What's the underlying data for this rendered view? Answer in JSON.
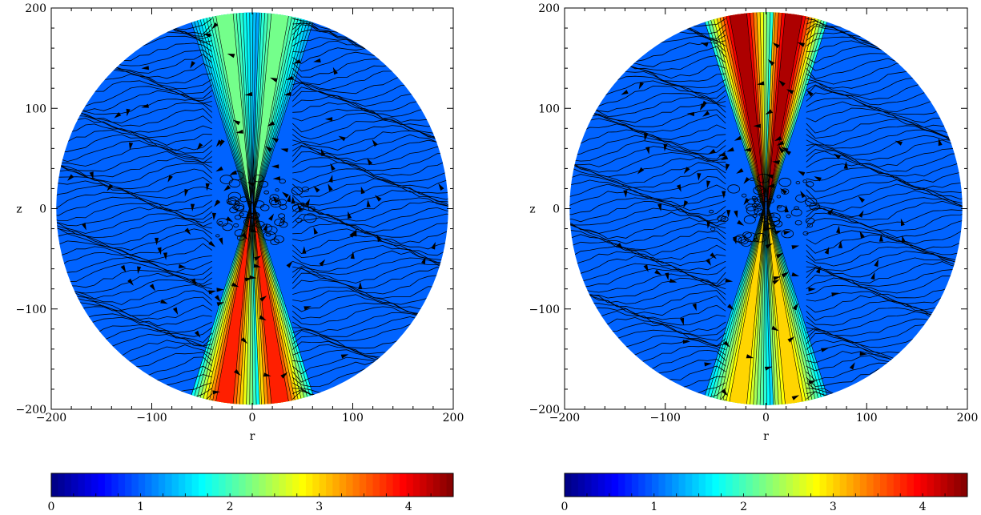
{
  "chart_data": [
    {
      "type": "heatmap",
      "title": "",
      "xlabel": "r",
      "ylabel": "z",
      "xlim": [
        -200,
        200
      ],
      "ylim": [
        -200,
        200
      ],
      "xticks": [
        "−200",
        "−100",
        "0",
        "100",
        "200"
      ],
      "yticks": [
        "200",
        "100",
        "0",
        "−100",
        "−200"
      ],
      "domain_shape": "disk of radius 195",
      "overlay": "streamlines with arrows",
      "colorbar": {
        "range": [
          0,
          4.5
        ],
        "ticks": [
          "0",
          "1",
          "2",
          "3",
          "4"
        ],
        "colormap": "jet"
      },
      "background_value": 1.0,
      "jet_peak_value": 3.8,
      "jet_location": "southern hemisphere, near r = ±30"
    },
    {
      "type": "heatmap",
      "title": "",
      "xlabel": "r",
      "ylabel": "z",
      "xlim": [
        -200,
        200
      ],
      "ylim": [
        -200,
        200
      ],
      "xticks": [
        "−200",
        "−100",
        "0",
        "100",
        "200"
      ],
      "yticks": [
        "200",
        "100",
        "0",
        "−100",
        "−200"
      ],
      "domain_shape": "disk of radius 195",
      "overlay": "streamlines with arrows",
      "colorbar": {
        "range": [
          0,
          4.5
        ],
        "ticks": [
          "0",
          "1",
          "2",
          "3",
          "4"
        ],
        "colormap": "jet"
      },
      "background_value": 1.0,
      "jet_peak_value": 4.3,
      "jet_location": "both hemispheres, strongest near z = 190"
    }
  ]
}
